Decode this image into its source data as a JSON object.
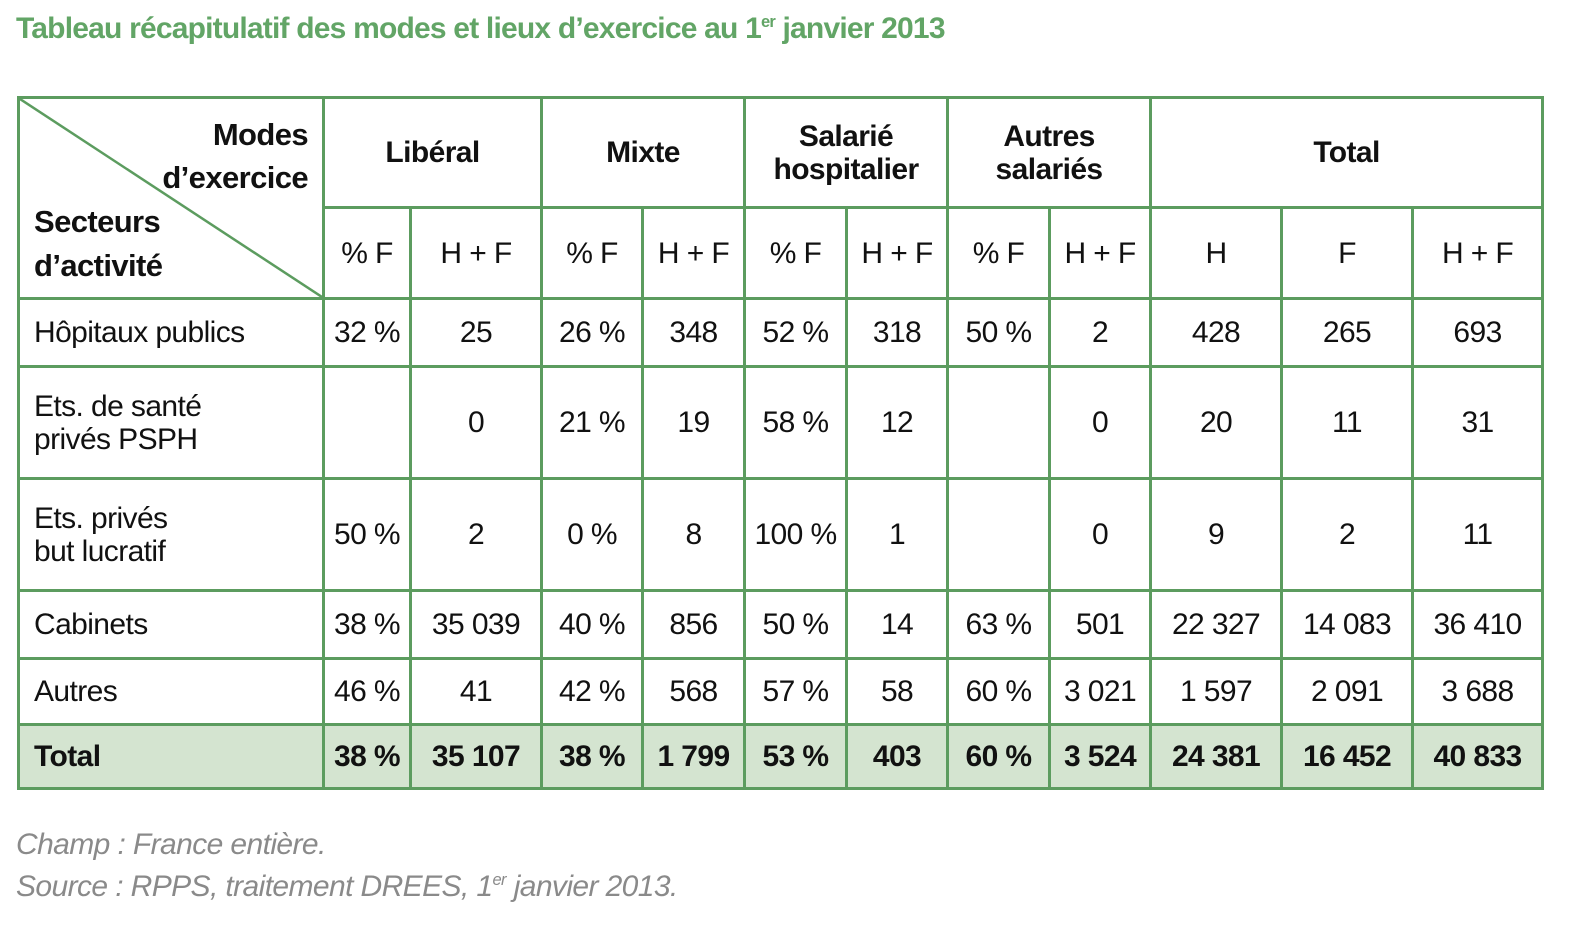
{
  "title": {
    "prefix": "Tableau récapitulatif des modes et lieux d’exercice au 1",
    "sup": "er",
    "suffix": " janvier 2013"
  },
  "colors": {
    "title": "#62a566",
    "border": "#5c9c5f",
    "total_row_bg": "#d4e4d0",
    "footnote": "#8a8a8a"
  },
  "corner": {
    "modes_line1": "Modes",
    "modes_line2": "d’exercice",
    "sect_line1": "Secteurs",
    "sect_line2": "d’activité"
  },
  "groups": [
    {
      "line1": "Libéral",
      "line2": ""
    },
    {
      "line1": "Mixte",
      "line2": ""
    },
    {
      "line1": "Salarié",
      "line2": "hospitalier"
    },
    {
      "line1": "Autres",
      "line2": "salariés"
    },
    {
      "line1": "Total",
      "line2": ""
    }
  ],
  "subheaders": [
    "% F",
    "H + F",
    "% F",
    "H + F",
    "% F",
    "H + F",
    "% F",
    "H + F",
    "H",
    "F",
    "H + F"
  ],
  "rows": [
    {
      "label1": "Hôpitaux publics",
      "label2": "",
      "cells": [
        "32 %",
        "25",
        "26 %",
        "348",
        "52 %",
        "318",
        "50 %",
        "2",
        "428",
        "265",
        "693"
      ]
    },
    {
      "label1": "Ets. de santé",
      "label2": "privés PSPH",
      "cells": [
        "",
        "0",
        "21 %",
        "19",
        "58 %",
        "12",
        "",
        "0",
        "20",
        "11",
        "31"
      ]
    },
    {
      "label1": "Ets. privés",
      "label2": "but lucratif",
      "cells": [
        "50 %",
        "2",
        "0 %",
        "8",
        "100 %",
        "1",
        "",
        "0",
        "9",
        "2",
        "11"
      ]
    },
    {
      "label1": "Cabinets",
      "label2": "",
      "cells": [
        "38 %",
        "35 039",
        "40 %",
        "856",
        "50 %",
        "14",
        "63 %",
        "501",
        "22 327",
        "14 083",
        "36 410"
      ]
    },
    {
      "label1": "Autres",
      "label2": "",
      "cells": [
        "46 %",
        "41",
        "42 %",
        "568",
        "57 %",
        "58",
        "60 %",
        "3 021",
        "1 597",
        "2 091",
        "3 688"
      ]
    }
  ],
  "total_row": {
    "label": "Total",
    "cells": [
      "38 %",
      "35 107",
      "38 %",
      "1 799",
      "53 %",
      "403",
      "60 %",
      "3 524",
      "24 381",
      "16 452",
      "40 833"
    ]
  },
  "footnotes": {
    "champ": "Champ : France entière.",
    "source_prefix": "Source : RPPS, traitement DREES, 1",
    "source_sup": "er",
    "source_suffix": " janvier 2013."
  }
}
